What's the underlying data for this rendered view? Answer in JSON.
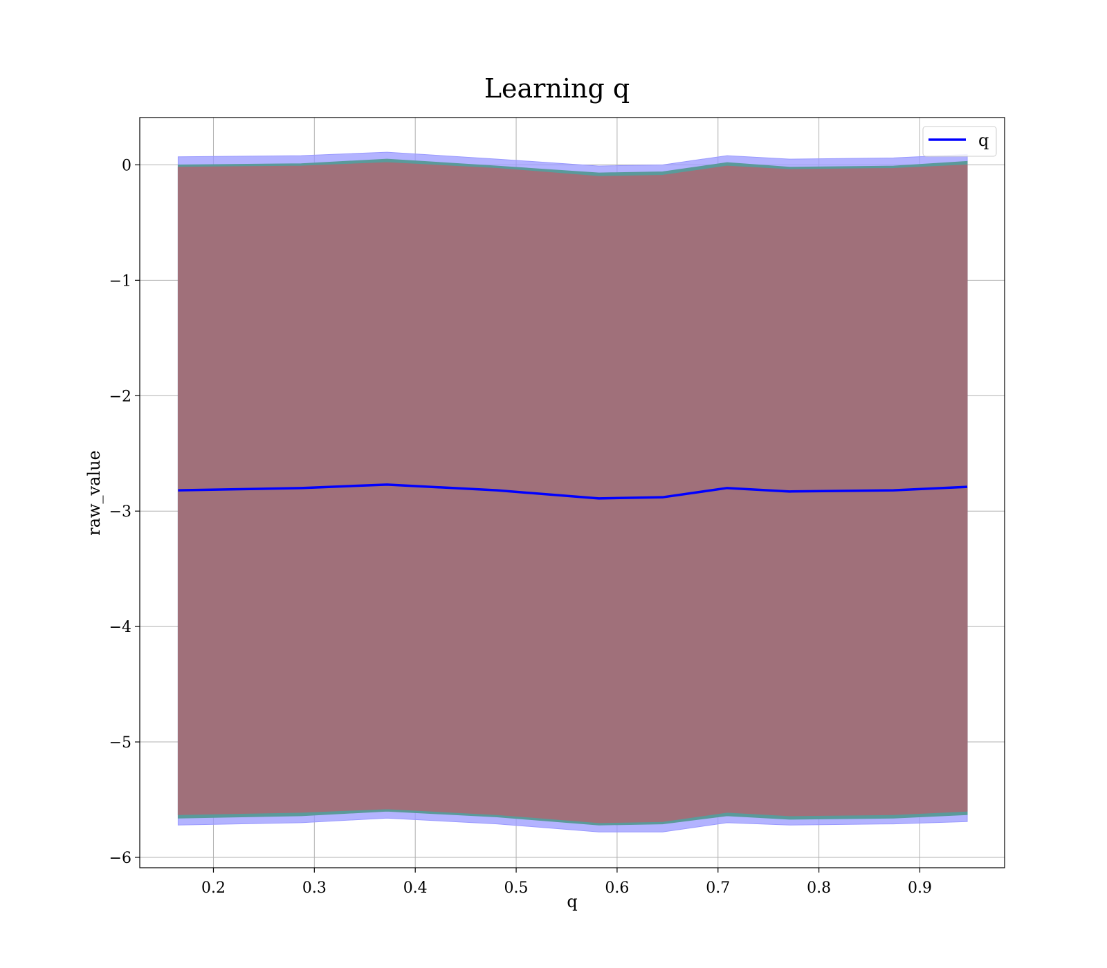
{
  "chart_data": {
    "type": "line",
    "title": "Learning q",
    "xlabel": "q",
    "ylabel": "raw_value",
    "xlim": [
      0.127,
      0.984
    ],
    "ylim": [
      -6.09,
      0.41
    ],
    "xticks": [
      0.2,
      0.3,
      0.4,
      0.5,
      0.6,
      0.7,
      0.8,
      0.9
    ],
    "xtick_labels": [
      "0.2",
      "0.3",
      "0.4",
      "0.5",
      "0.6",
      "0.7",
      "0.8",
      "0.9"
    ],
    "yticks": [
      0,
      -1,
      -2,
      -3,
      -4,
      -5,
      -6
    ],
    "ytick_labels": [
      "0",
      "−1",
      "−2",
      "−3",
      "−4",
      "−5",
      "−6"
    ],
    "grid": true,
    "legend": {
      "position": "top-right",
      "entries": [
        "q"
      ]
    },
    "colors": {
      "line": "#0000ff",
      "outer_band": "#9999ff",
      "middle_band": "#5a9a9a",
      "inner_band": "#a0707a"
    },
    "x": [
      0.165,
      0.287,
      0.372,
      0.481,
      0.582,
      0.645,
      0.709,
      0.771,
      0.874,
      0.947
    ],
    "series": [
      {
        "name": "q",
        "values": [
          -2.82,
          -2.8,
          -2.77,
          -2.82,
          -2.89,
          -2.88,
          -2.8,
          -2.83,
          -2.82,
          -2.79
        ]
      }
    ],
    "bands": [
      {
        "upper": [
          0.07,
          0.08,
          0.11,
          0.05,
          -0.01,
          -0.0,
          0.08,
          0.05,
          0.06,
          0.09
        ],
        "lower": [
          -5.72,
          -5.7,
          -5.66,
          -5.71,
          -5.78,
          -5.78,
          -5.7,
          -5.72,
          -5.71,
          -5.69
        ]
      },
      {
        "upper": [
          0.0,
          0.01,
          0.05,
          -0.01,
          -0.07,
          -0.06,
          0.02,
          -0.02,
          -0.01,
          0.03
        ],
        "lower": [
          -5.66,
          -5.64,
          -5.6,
          -5.65,
          -5.72,
          -5.71,
          -5.64,
          -5.67,
          -5.66,
          -5.63
        ]
      },
      {
        "upper": [
          -0.02,
          -0.01,
          0.02,
          -0.03,
          -0.1,
          -0.09,
          -0.01,
          -0.04,
          -0.03,
          0.0
        ],
        "lower": [
          -5.63,
          -5.61,
          -5.58,
          -5.63,
          -5.7,
          -5.69,
          -5.61,
          -5.64,
          -5.63,
          -5.6
        ]
      }
    ]
  }
}
